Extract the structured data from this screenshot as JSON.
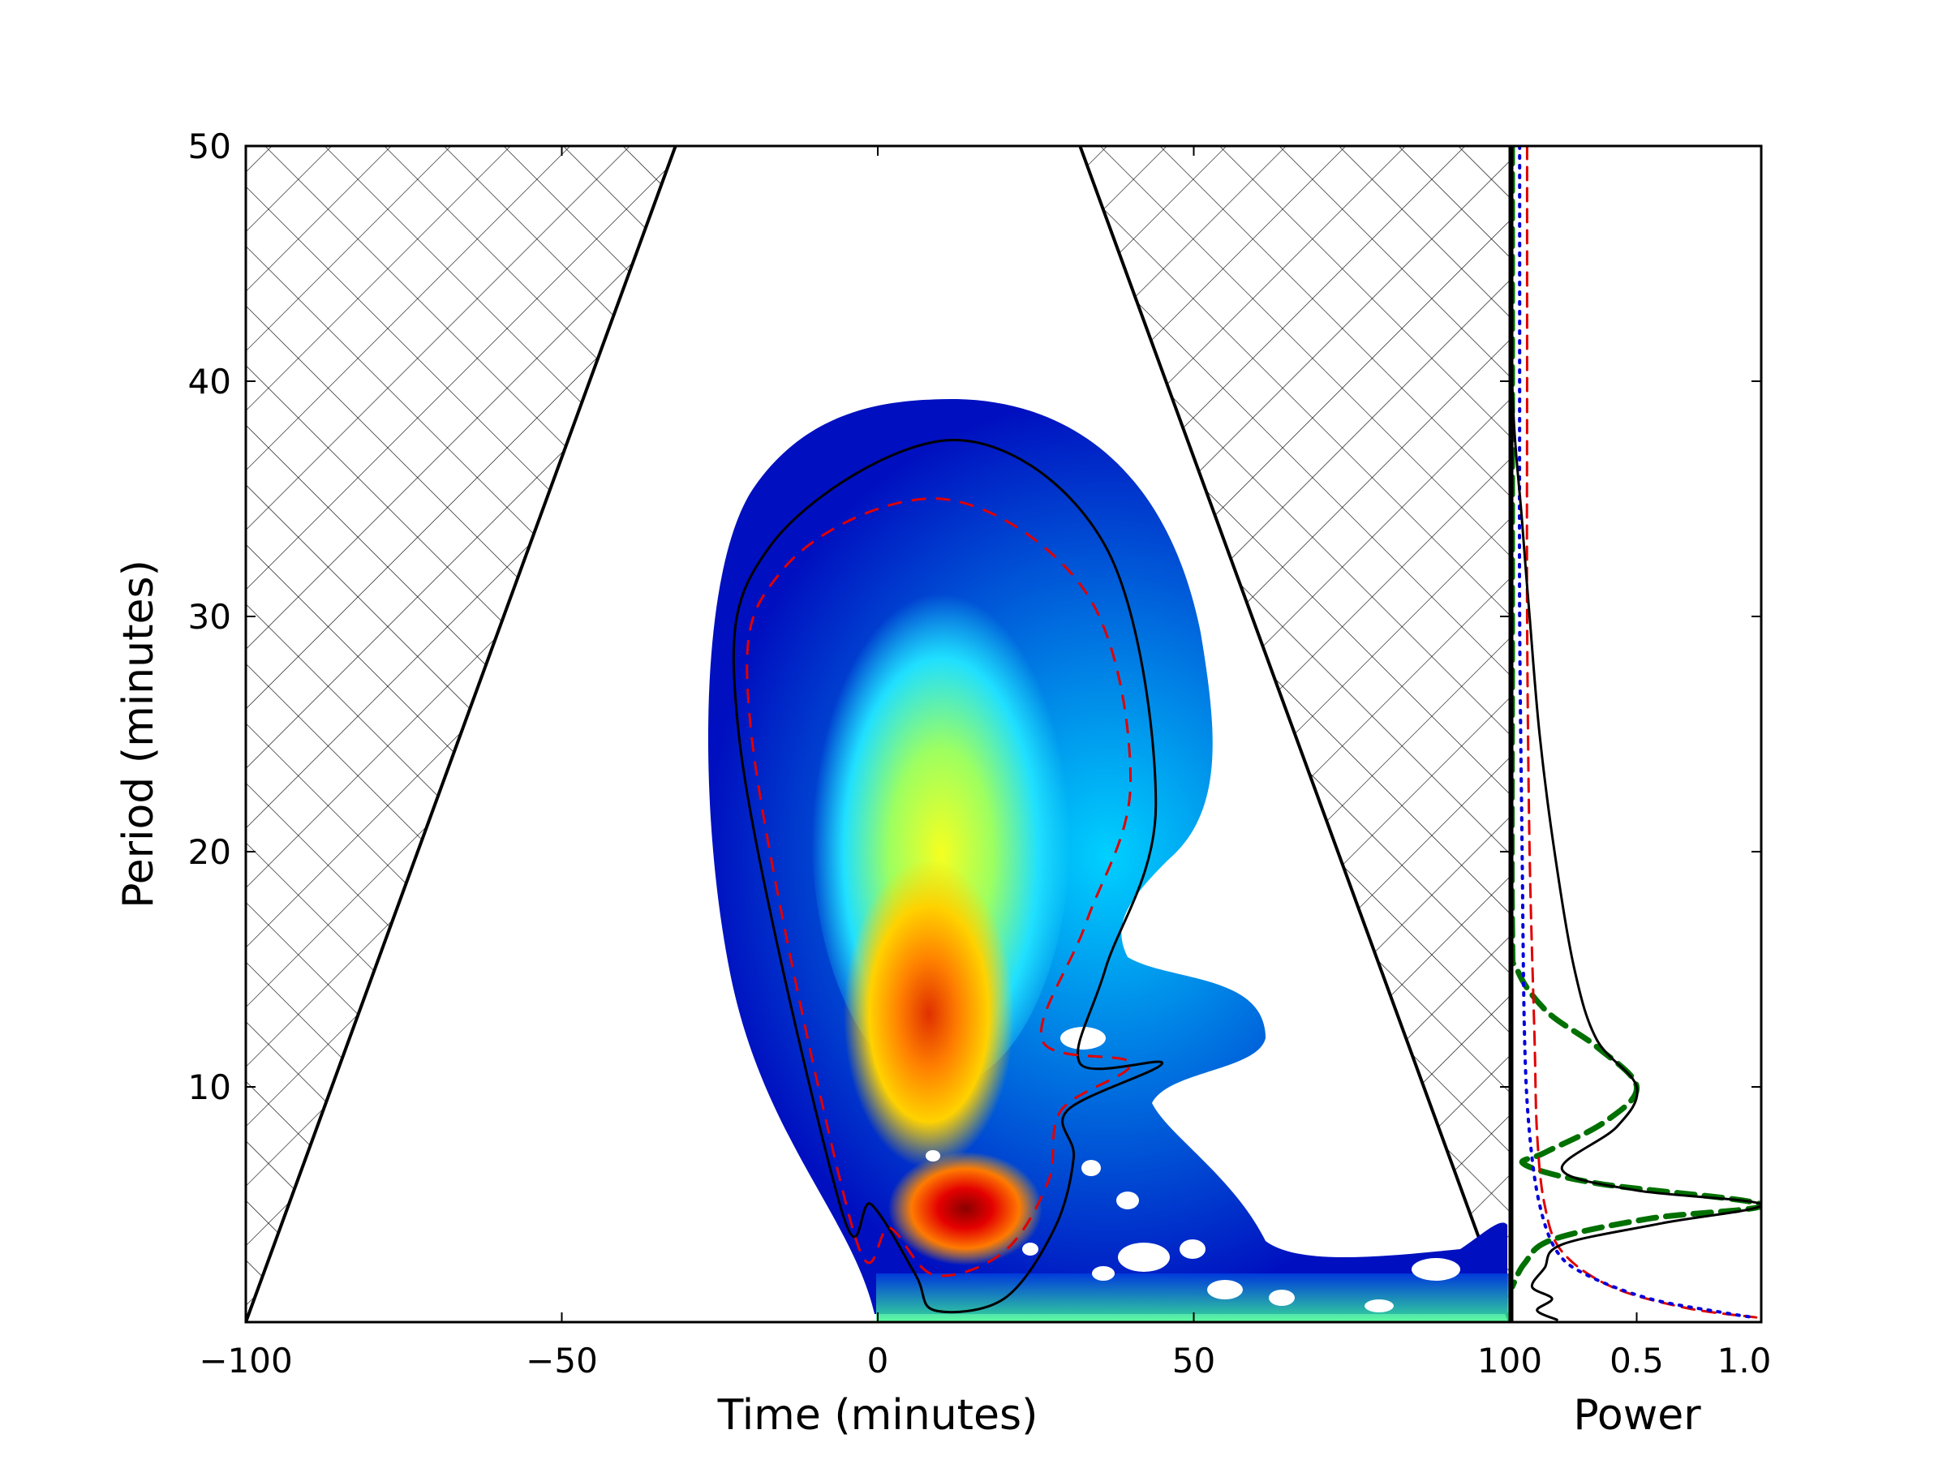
{
  "chart_data": [
    {
      "type": "heatmap",
      "title": "",
      "xlabel": "Time (minutes)",
      "ylabel": "Period (minutes)",
      "xlim": [
        -100,
        100
      ],
      "ylim": [
        0,
        50
      ],
      "xticks": [
        -100,
        -50,
        0,
        50,
        100
      ],
      "yticks": [
        10,
        20,
        30,
        40,
        50
      ],
      "xtick_labels": [
        "−100",
        "−50",
        "0",
        "50",
        "100"
      ],
      "ytick_labels": [
        "10",
        "20",
        "30",
        "40",
        "50"
      ],
      "colormap": "jet",
      "cone_of_influence": {
        "left": [
          [
            -100,
            0
          ],
          [
            -32,
            50
          ]
        ],
        "right": [
          [
            32,
            50
          ],
          [
            100,
            0
          ]
        ]
      },
      "power_peaks": [
        {
          "time": 16,
          "period": 5,
          "level": 1.0
        },
        {
          "time": 10,
          "period": 10,
          "level": 0.75
        },
        {
          "time": 10,
          "period": 20,
          "level": 0.5
        }
      ],
      "significance_contour": {
        "outer": [
          [
            -6,
            5
          ],
          [
            -22,
            25
          ],
          [
            -17,
            33
          ],
          [
            12,
            37.5
          ],
          [
            36,
            33
          ],
          [
            44,
            22
          ],
          [
            36,
            15
          ],
          [
            32,
            11
          ],
          [
            45,
            11
          ],
          [
            30,
            9
          ],
          [
            31,
            7
          ],
          [
            28,
            4
          ],
          [
            20,
            1
          ],
          [
            9,
            0.5
          ],
          [
            6,
            2
          ],
          [
            -1,
            5
          ]
        ],
        "inner_dashed": [
          [
            -4,
            4
          ],
          [
            -20,
            25
          ],
          [
            -15,
            32
          ],
          [
            10,
            35
          ],
          [
            33,
            31
          ],
          [
            40,
            23
          ],
          [
            33,
            17
          ],
          [
            26,
            12
          ],
          [
            40,
            11
          ],
          [
            29,
            9
          ],
          [
            27,
            6
          ],
          [
            20,
            3
          ],
          [
            9,
            2
          ],
          [
            2,
            4
          ]
        ]
      },
      "grid": false,
      "legend": "none"
    },
    {
      "type": "line",
      "xlabel": "Power",
      "ylabel": "",
      "xlim": [
        0,
        1.0
      ],
      "ylim": [
        0,
        50
      ],
      "xticks": [
        0.5,
        1.0
      ],
      "xtick_labels": [
        "0.5",
        "1.0"
      ],
      "series": [
        {
          "style": "solid",
          "color": "#000000",
          "points": [
            [
              0.0,
              50
            ],
            [
              0.0,
              40
            ],
            [
              0.04,
              34
            ],
            [
              0.07,
              30
            ],
            [
              0.11,
              25
            ],
            [
              0.17,
              20
            ],
            [
              0.25,
              15
            ],
            [
              0.34,
              12
            ],
            [
              0.5,
              10
            ],
            [
              0.42,
              8.3
            ],
            [
              0.2,
              6.5
            ],
            [
              0.5,
              5.6
            ],
            [
              1.0,
              5.0
            ],
            [
              0.6,
              4.2
            ],
            [
              0.2,
              3.3
            ],
            [
              0.13,
              2.3
            ],
            [
              0.08,
              1.5
            ],
            [
              0.16,
              1.0
            ],
            [
              0.1,
              0.5
            ],
            [
              0.18,
              0.1
            ]
          ]
        },
        {
          "style": "dashed",
          "color": "#e00000",
          "points": [
            [
              0.06,
              50
            ],
            [
              0.06,
              40
            ],
            [
              0.06,
              30
            ],
            [
              0.07,
              20
            ],
            [
              0.09,
              12
            ],
            [
              0.1,
              8
            ],
            [
              0.13,
              5
            ],
            [
              0.2,
              3
            ],
            [
              0.4,
              1.5
            ],
            [
              0.7,
              0.6
            ],
            [
              0.98,
              0.2
            ]
          ]
        },
        {
          "style": "dotted",
          "color": "#0000dd",
          "points": [
            [
              0.03,
              50
            ],
            [
              0.03,
              40
            ],
            [
              0.03,
              30
            ],
            [
              0.04,
              20
            ],
            [
              0.05,
              12
            ],
            [
              0.07,
              8
            ],
            [
              0.11,
              5
            ],
            [
              0.18,
              3
            ],
            [
              0.3,
              2
            ],
            [
              0.55,
              1.0
            ],
            [
              0.85,
              0.4
            ],
            [
              0.97,
              0.2
            ]
          ]
        },
        {
          "style": "thick-dashed",
          "color": "#007000",
          "points": [
            [
              0.0,
              50
            ],
            [
              0.0,
              30
            ],
            [
              0.0,
              17
            ],
            [
              0.02,
              15
            ],
            [
              0.14,
              13.2
            ],
            [
              0.34,
              11.7
            ],
            [
              0.5,
              10.0
            ],
            [
              0.37,
              8.5
            ],
            [
              0.13,
              7.2
            ],
            [
              0.05,
              6.7
            ],
            [
              0.34,
              5.9
            ],
            [
              1.0,
              5.0
            ],
            [
              0.55,
              4.4
            ],
            [
              0.16,
              3.5
            ],
            [
              0.05,
              2.5
            ],
            [
              0.0,
              1.5
            ]
          ]
        }
      ],
      "grid": false,
      "legend": "none"
    }
  ]
}
